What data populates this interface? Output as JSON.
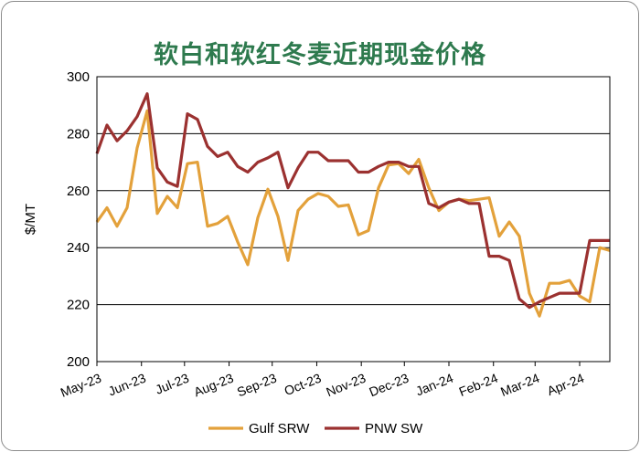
{
  "chart_data": {
    "type": "line",
    "title": "软白和软红冬麦近期现金价格",
    "xlabel": "",
    "ylabel": "$/MT",
    "ylim": [
      200,
      300
    ],
    "yticks": [
      200,
      220,
      240,
      260,
      280,
      300
    ],
    "grid": true,
    "legend": "bottom",
    "x_tick_labels": [
      "May-23",
      "Jun-23",
      "Jul-23",
      "Aug-23",
      "Sep-23",
      "Oct-23",
      "Nov-23",
      "Dec-23",
      "Jan-24",
      "Feb-24",
      "Mar-24",
      "Apr-24"
    ],
    "x_tick_positions": [
      0,
      4.43,
      8.71,
      13.14,
      17.43,
      21.86,
      26.29,
      30.57,
      35.0,
      39.43,
      43.57,
      48.0
    ],
    "x": [
      0,
      1,
      2,
      3,
      4,
      5,
      6,
      7,
      8,
      9,
      10,
      11,
      12,
      13,
      14,
      15,
      16,
      17,
      18,
      19,
      20,
      21,
      22,
      23,
      24,
      25,
      26,
      27,
      28,
      29,
      30,
      31,
      32,
      33,
      34,
      35,
      36,
      37,
      38,
      39,
      40,
      41,
      42,
      43,
      44,
      45,
      46,
      47,
      48,
      49,
      50,
      51
    ],
    "series": [
      {
        "name": "Gulf SRW",
        "color": "#e3a13b",
        "values": [
          249,
          254,
          247.5,
          254,
          275,
          288,
          252,
          258,
          254,
          269.5,
          270,
          247.5,
          248.5,
          251,
          242,
          234,
          250.5,
          260.5,
          251,
          235.5,
          253,
          257,
          259,
          258,
          254.5,
          255,
          244.5,
          246,
          261,
          269,
          269.5,
          266,
          271,
          261,
          253,
          256,
          257,
          256.5,
          257,
          257.5,
          244,
          249,
          244,
          224,
          216,
          227.5,
          227.5,
          228.5,
          223,
          221,
          240,
          239
        ]
      },
      {
        "name": "PNW SW",
        "color": "#9b3130",
        "values": [
          273,
          283,
          277.5,
          281,
          286,
          294,
          268,
          263,
          261.5,
          287,
          285,
          275.5,
          272,
          273.5,
          268.5,
          266.5,
          270,
          271.5,
          273.5,
          261,
          268,
          273.5,
          273.5,
          270.5,
          270.5,
          270.5,
          266.5,
          266.5,
          268.5,
          270,
          270,
          268.5,
          268.5,
          255.5,
          254,
          256,
          257,
          255.5,
          255.5,
          237,
          237,
          235.5,
          222,
          219,
          221,
          222.5,
          224,
          224,
          224,
          242.5,
          242.5,
          242.5
        ]
      }
    ]
  }
}
